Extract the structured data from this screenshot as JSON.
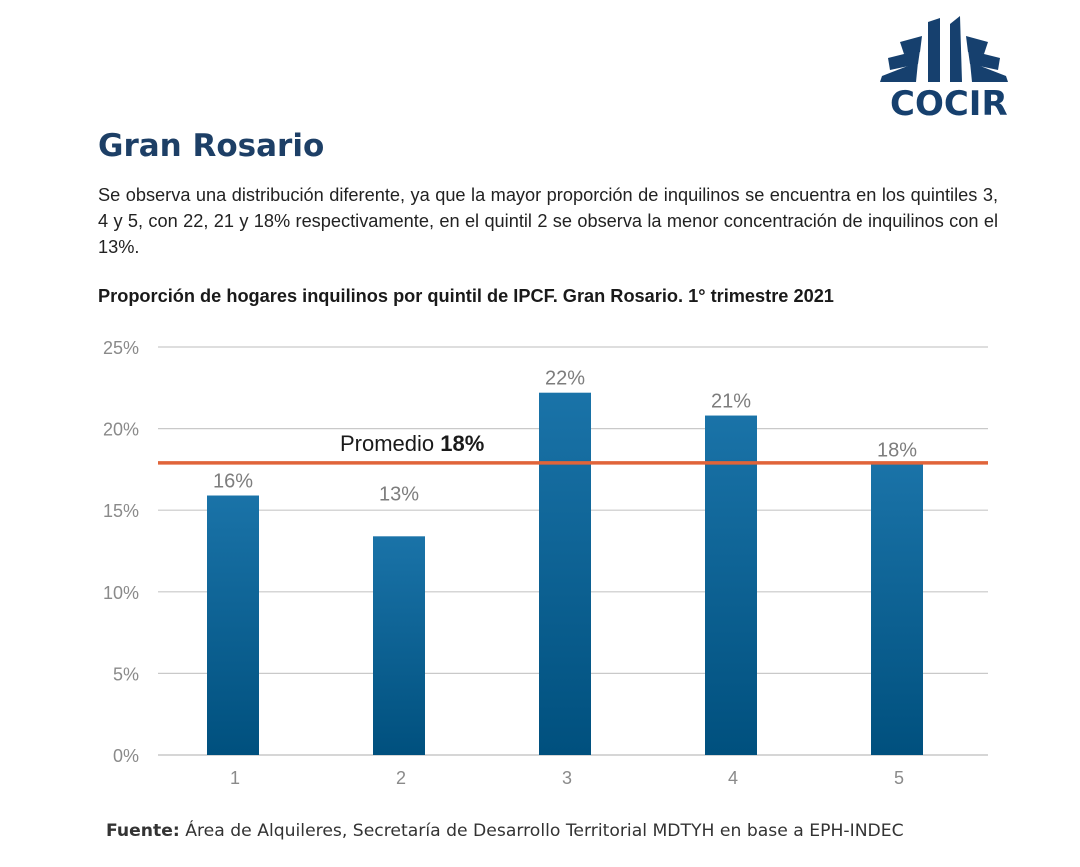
{
  "logo": {
    "text": "COCIR",
    "color": "#16406e"
  },
  "title": "Gran Rosario",
  "intro": "Se observa una distribución diferente, ya que la mayor proporción de inquilinos se encuentra en los quintiles 3, 4 y 5, con 22, 21 y 18% respectivamente, en el quintil 2 se observa la menor concentración de inquilinos con el 13%.",
  "chart_data": {
    "type": "bar",
    "title": "Proporción de hogares inquilinos por quintil de IPCF. Gran Rosario. 1° trimestre 2021",
    "categories": [
      "1",
      "2",
      "3",
      "4",
      "5"
    ],
    "values": [
      15.9,
      13.4,
      22.2,
      20.8,
      17.8
    ],
    "value_labels": [
      "16%",
      "13%",
      "22%",
      "21%",
      "18%"
    ],
    "ylim": [
      0,
      25
    ],
    "yticks": [
      0,
      5,
      10,
      15,
      20,
      25
    ],
    "ytick_labels": [
      "0%",
      "5%",
      "10%",
      "15%",
      "20%",
      "25%"
    ],
    "grid": true,
    "xlabel": "",
    "ylabel": "",
    "bar_color_top": "#1a73a8",
    "bar_color_bottom": "#00507e",
    "reference_line": {
      "value": 17.9,
      "label_prefix": "Promedio",
      "label_value": "18%",
      "color": "#e0643a"
    }
  },
  "source": {
    "prefix": "Fuente:",
    "text": " Área de Alquileres, Secretaría de Desarrollo Territorial MDTYH en base a EPH-INDEC"
  }
}
